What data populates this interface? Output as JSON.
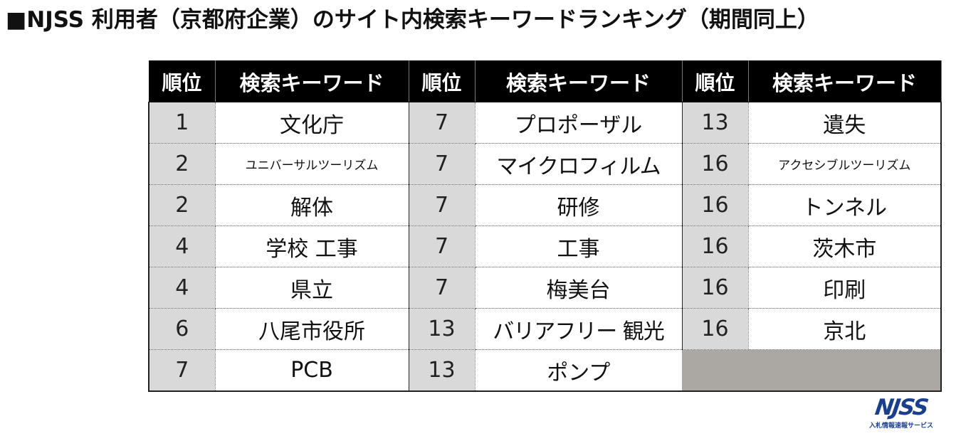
{
  "title": "■NJSS 利用者（京都府企業）のサイト内検索キーワードランキング（期間同上）",
  "headers": {
    "rank": "順位",
    "keyword": "検索キーワード"
  },
  "columns": [
    {
      "entries": [
        {
          "rank": "1",
          "keyword": "文化庁"
        },
        {
          "rank": "2",
          "keyword": "ユニバーサルツーリズム"
        },
        {
          "rank": "2",
          "keyword": "解体"
        },
        {
          "rank": "4",
          "keyword": "学校 工事"
        },
        {
          "rank": "4",
          "keyword": "県立"
        },
        {
          "rank": "6",
          "keyword": "八尾市役所"
        },
        {
          "rank": "7",
          "keyword": "PCB"
        }
      ]
    },
    {
      "entries": [
        {
          "rank": "7",
          "keyword": "プロポーザル"
        },
        {
          "rank": "7",
          "keyword": "マイクロフィルム"
        },
        {
          "rank": "7",
          "keyword": "研修"
        },
        {
          "rank": "7",
          "keyword": "工事"
        },
        {
          "rank": "7",
          "keyword": "梅美台"
        },
        {
          "rank": "13",
          "keyword": "バリアフリー 観光"
        },
        {
          "rank": "13",
          "keyword": "ポンプ"
        }
      ]
    },
    {
      "entries": [
        {
          "rank": "13",
          "keyword": "遺失"
        },
        {
          "rank": "16",
          "keyword": "アクセシブルツーリズム"
        },
        {
          "rank": "16",
          "keyword": "トンネル"
        },
        {
          "rank": "16",
          "keyword": "茨木市"
        },
        {
          "rank": "16",
          "keyword": "印刷"
        },
        {
          "rank": "16",
          "keyword": "京北"
        }
      ]
    }
  ],
  "logo": {
    "mark": "NJSS",
    "tagline": "入札情報速報サービス",
    "color": "#1b3f8b"
  },
  "colors": {
    "header_bg": "#000000",
    "rank_bg": "#d9d9d9",
    "empty_bg": "#aba7a3"
  }
}
